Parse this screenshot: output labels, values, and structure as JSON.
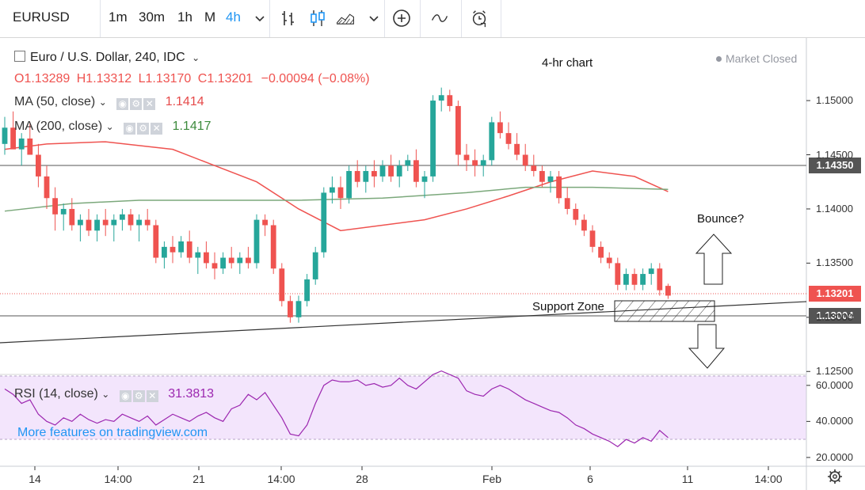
{
  "toolbar": {
    "symbol": "EURUSD",
    "intervals": [
      "1m",
      "30m",
      "1h",
      "M",
      "4h"
    ],
    "active_interval": "4h"
  },
  "legend": {
    "title": "Euro / U.S. Dollar, 240, IDC",
    "ohlc": {
      "o": "O1.13289",
      "h": "H1.13312",
      "l": "L1.13170",
      "c": "C1.13201",
      "chg": "−0.00094 (−0.08%)"
    },
    "ma50": {
      "label": "MA (50, close)",
      "value": "1.1414",
      "color": "#e64a4a"
    },
    "ma200": {
      "label": "MA (200, close)",
      "value": "1.1417",
      "color": "#3c8a3c"
    },
    "rsi": {
      "label": "RSI (14, close)",
      "value": "31.3813",
      "color": "#9c27b0"
    }
  },
  "market_status": "Market Closed",
  "more_features": "More features on tradingview.com",
  "annotations": {
    "chart_note": "4-hr chart",
    "bounce": "Bounce?",
    "support": "Support Zone"
  },
  "price_labels": {
    "res_line": "1.14350",
    "last": "1.13201",
    "sup_line": "1.13004"
  },
  "colors": {
    "up": "#26a69a",
    "down": "#ef5350",
    "accent": "#2196f3",
    "rsi_band": "#f3e5fc"
  },
  "chart_data": [
    {
      "type": "candlestick",
      "title": "Euro / U.S. Dollar, 240, IDC",
      "x_ticks": [
        "14",
        "14:00",
        "21",
        "14:00",
        "28",
        "Feb",
        "6",
        "11",
        "14:00"
      ],
      "y_ticks": [
        "1.12500",
        "1.13000",
        "1.13500",
        "1.14000",
        "1.14500",
        "1.15000"
      ],
      "ylim": [
        1.1248,
        1.1549
      ],
      "horizontal_lines": [
        1.1435,
        1.13004
      ],
      "last_price": 1.13201,
      "candles_ohlc": [
        [
          1.146,
          1.1485,
          1.145,
          1.1475
        ],
        [
          1.1475,
          1.149,
          1.1465,
          1.1455
        ],
        [
          1.1455,
          1.147,
          1.144,
          1.1465
        ],
        [
          1.1465,
          1.148,
          1.1455,
          1.145
        ],
        [
          1.145,
          1.146,
          1.142,
          1.143
        ],
        [
          1.143,
          1.144,
          1.14,
          1.141
        ],
        [
          1.141,
          1.142,
          1.138,
          1.1395
        ],
        [
          1.1395,
          1.1405,
          1.138,
          1.14
        ],
        [
          1.14,
          1.141,
          1.138,
          1.1385
        ],
        [
          1.1385,
          1.1395,
          1.137,
          1.139
        ],
        [
          1.139,
          1.14,
          1.1375,
          1.138
        ],
        [
          1.138,
          1.1395,
          1.137,
          1.139
        ],
        [
          1.139,
          1.14,
          1.1375,
          1.1385
        ],
        [
          1.1385,
          1.1395,
          1.137,
          1.139
        ],
        [
          1.139,
          1.14,
          1.138,
          1.1395
        ],
        [
          1.1395,
          1.14,
          1.138,
          1.1385
        ],
        [
          1.1385,
          1.1395,
          1.137,
          1.139
        ],
        [
          1.139,
          1.14,
          1.138,
          1.1385
        ],
        [
          1.1385,
          1.139,
          1.135,
          1.1355
        ],
        [
          1.1355,
          1.137,
          1.1345,
          1.1365
        ],
        [
          1.1365,
          1.1375,
          1.135,
          1.136
        ],
        [
          1.136,
          1.1375,
          1.1355,
          1.137
        ],
        [
          1.137,
          1.138,
          1.135,
          1.1355
        ],
        [
          1.1355,
          1.1365,
          1.134,
          1.136
        ],
        [
          1.136,
          1.137,
          1.1345,
          1.135
        ],
        [
          1.135,
          1.136,
          1.1335,
          1.1345
        ],
        [
          1.1345,
          1.136,
          1.134,
          1.1355
        ],
        [
          1.1355,
          1.1365,
          1.1345,
          1.135
        ],
        [
          1.135,
          1.136,
          1.134,
          1.1355
        ],
        [
          1.1355,
          1.1365,
          1.1345,
          1.135
        ],
        [
          1.135,
          1.1395,
          1.1345,
          1.139
        ],
        [
          1.139,
          1.1395,
          1.1375,
          1.1385
        ],
        [
          1.1385,
          1.139,
          1.134,
          1.1345
        ],
        [
          1.1345,
          1.135,
          1.131,
          1.1315
        ],
        [
          1.1315,
          1.132,
          1.1295,
          1.13
        ],
        [
          1.13,
          1.132,
          1.1295,
          1.1315
        ],
        [
          1.1315,
          1.134,
          1.131,
          1.1335
        ],
        [
          1.1335,
          1.1365,
          1.133,
          1.136
        ],
        [
          1.136,
          1.142,
          1.1355,
          1.1415
        ],
        [
          1.1415,
          1.143,
          1.1405,
          1.142
        ],
        [
          1.142,
          1.143,
          1.14,
          1.141
        ],
        [
          1.141,
          1.144,
          1.1405,
          1.1435
        ],
        [
          1.1435,
          1.1445,
          1.142,
          1.1425
        ],
        [
          1.1425,
          1.144,
          1.1415,
          1.1435
        ],
        [
          1.1435,
          1.1445,
          1.142,
          1.143
        ],
        [
          1.143,
          1.1445,
          1.1425,
          1.144
        ],
        [
          1.144,
          1.145,
          1.1425,
          1.143
        ],
        [
          1.143,
          1.1445,
          1.142,
          1.144
        ],
        [
          1.144,
          1.145,
          1.1435,
          1.1445
        ],
        [
          1.1445,
          1.1455,
          1.142,
          1.1425
        ],
        [
          1.1425,
          1.1435,
          1.141,
          1.143
        ],
        [
          1.143,
          1.1505,
          1.1425,
          1.15
        ],
        [
          1.15,
          1.1512,
          1.149,
          1.1505
        ],
        [
          1.1505,
          1.151,
          1.149,
          1.1495
        ],
        [
          1.1495,
          1.15,
          1.144,
          1.145
        ],
        [
          1.145,
          1.146,
          1.1435,
          1.1445
        ],
        [
          1.1445,
          1.1455,
          1.143,
          1.144
        ],
        [
          1.144,
          1.145,
          1.143,
          1.1445
        ],
        [
          1.1445,
          1.1485,
          1.144,
          1.148
        ],
        [
          1.148,
          1.149,
          1.1465,
          1.147
        ],
        [
          1.147,
          1.148,
          1.1455,
          1.146
        ],
        [
          1.146,
          1.147,
          1.1445,
          1.145
        ],
        [
          1.145,
          1.146,
          1.1435,
          1.144
        ],
        [
          1.144,
          1.145,
          1.143,
          1.1435
        ],
        [
          1.1435,
          1.144,
          1.142,
          1.1425
        ],
        [
          1.1425,
          1.1435,
          1.1415,
          1.143
        ],
        [
          1.143,
          1.1435,
          1.1405,
          1.141
        ],
        [
          1.141,
          1.142,
          1.1395,
          1.14
        ],
        [
          1.14,
          1.1405,
          1.1385,
          1.139
        ],
        [
          1.139,
          1.1395,
          1.1375,
          1.138
        ],
        [
          1.138,
          1.1385,
          1.136,
          1.1365
        ],
        [
          1.1365,
          1.137,
          1.135,
          1.1355
        ],
        [
          1.1355,
          1.136,
          1.1345,
          1.135
        ],
        [
          1.135,
          1.1355,
          1.1325,
          1.133
        ],
        [
          1.133,
          1.1345,
          1.1325,
          1.134
        ],
        [
          1.134,
          1.1345,
          1.1325,
          1.133
        ],
        [
          1.133,
          1.1345,
          1.1325,
          1.134
        ],
        [
          1.134,
          1.135,
          1.133,
          1.1345
        ],
        [
          1.1345,
          1.135,
          1.132,
          1.1325
        ],
        [
          1.1329,
          1.1331,
          1.1317,
          1.132
        ]
      ],
      "series": [
        {
          "name": "MA (50, close)",
          "color": "#ef5350",
          "points": [
            [
              0,
              1.1455
            ],
            [
              5,
              1.146
            ],
            [
              12,
              1.1462
            ],
            [
              20,
              1.1455
            ],
            [
              25,
              1.144
            ],
            [
              30,
              1.1425
            ],
            [
              35,
              1.14
            ],
            [
              40,
              1.138
            ],
            [
              45,
              1.1385
            ],
            [
              50,
              1.139
            ],
            [
              55,
              1.14
            ],
            [
              60,
              1.1412
            ],
            [
              65,
              1.1425
            ],
            [
              70,
              1.1435
            ],
            [
              75,
              1.143
            ],
            [
              79,
              1.1416
            ]
          ]
        },
        {
          "name": "MA (200, close)",
          "color": "#7ba87b",
          "points": [
            [
              0,
              1.1398
            ],
            [
              8,
              1.1405
            ],
            [
              16,
              1.1408
            ],
            [
              25,
              1.1408
            ],
            [
              35,
              1.1408
            ],
            [
              45,
              1.141
            ],
            [
              55,
              1.1415
            ],
            [
              62,
              1.142
            ],
            [
              70,
              1.142
            ],
            [
              79,
              1.1418
            ]
          ]
        }
      ]
    },
    {
      "type": "line",
      "title": "RSI (14, close)",
      "y_ticks": [
        "20.0000",
        "40.0000",
        "60.0000"
      ],
      "ylim": [
        16,
        63
      ],
      "band": [
        30,
        70
      ],
      "values": [
        58,
        55,
        50,
        52,
        44,
        40,
        38,
        42,
        40,
        44,
        41,
        39,
        41,
        40,
        44,
        42,
        40,
        43,
        38,
        41,
        44,
        42,
        40,
        43,
        45,
        42,
        40,
        47,
        49,
        55,
        52,
        56,
        49,
        42,
        33,
        32,
        38,
        50,
        60,
        63,
        62,
        62,
        63,
        60,
        61,
        59,
        60,
        64,
        60,
        58,
        62,
        66,
        68,
        66,
        64,
        57,
        55,
        54,
        58,
        60,
        58,
        55,
        52,
        50,
        48,
        46,
        45,
        42,
        38,
        36,
        33,
        31,
        29,
        26,
        30,
        28,
        31,
        29,
        35,
        31
      ]
    }
  ]
}
